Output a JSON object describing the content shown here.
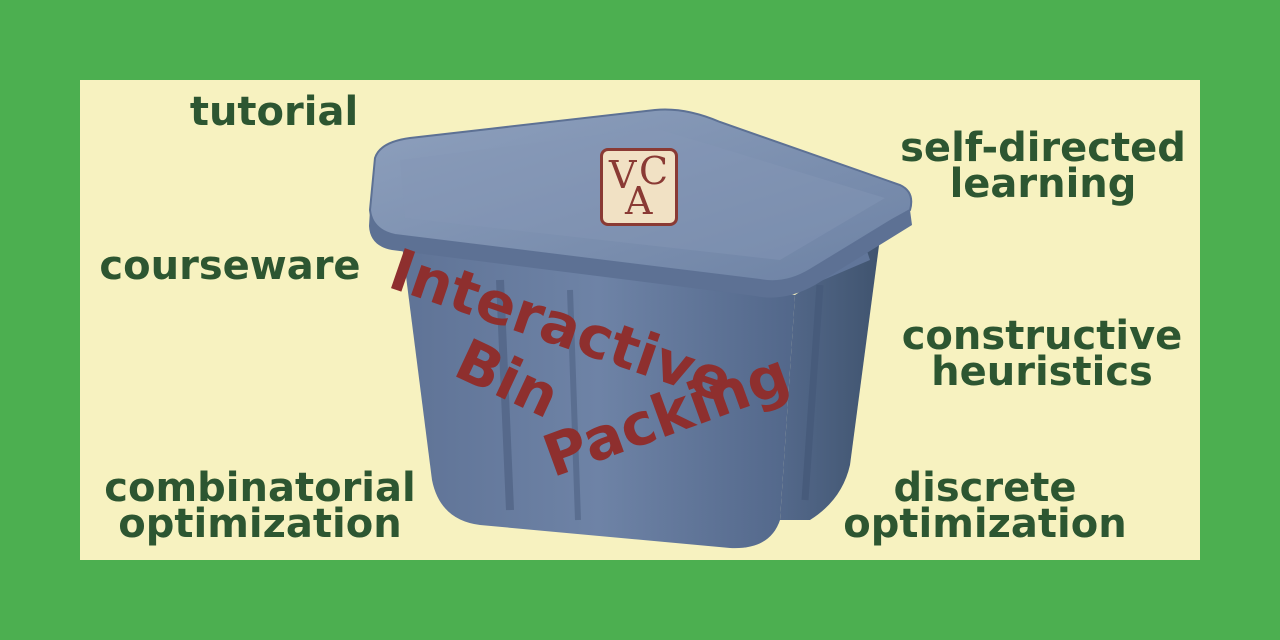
{
  "keywords": {
    "tutorial": "tutorial",
    "courseware": "courseware",
    "combinatorial_line1": "combinatorial",
    "combinatorial_line2": "optimization",
    "selfdirected_line1": "self-directed",
    "selfdirected_line2": "learning",
    "constructive_line1": "constructive",
    "constructive_line2": "heuristics",
    "discrete_line1": "discrete",
    "discrete_line2": "optimization"
  },
  "title": {
    "word1": "Interactive",
    "word2": "Bin",
    "word3": "Packing"
  },
  "logo": {
    "letter_v": "V",
    "letter_c": "C",
    "letter_a": "A"
  },
  "colors": {
    "frame": "#4caf50",
    "panel": "#f7f2c0",
    "keyword_text": "#2d5631",
    "title_text": "#8e2f2e",
    "bin": "#6f84a6"
  }
}
